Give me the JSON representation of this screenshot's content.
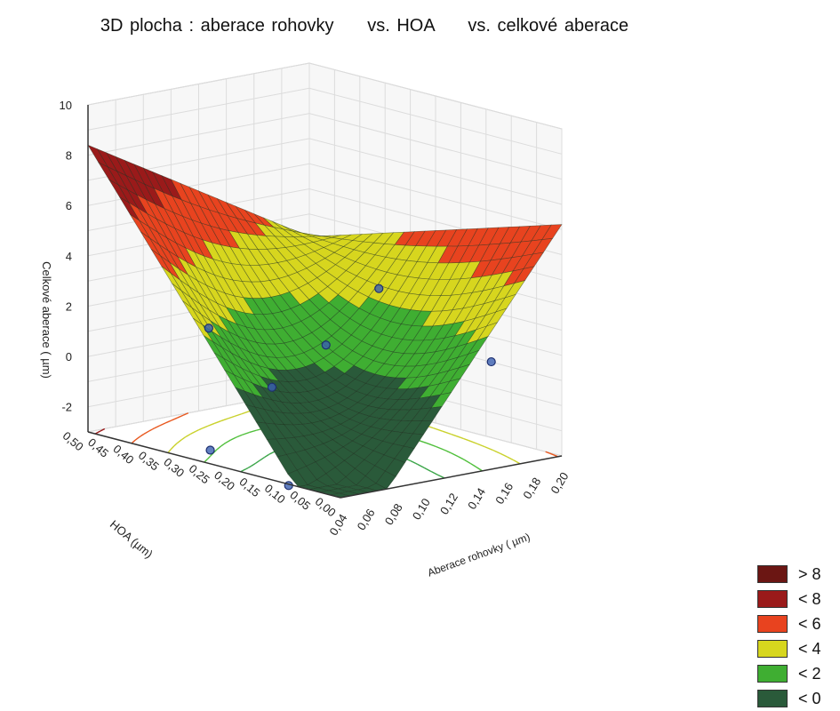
{
  "chart_data": {
    "type": "surface3d",
    "title": "3D plocha : aberace rohovky     vs. HOA     vs. celkové aberace",
    "xlabel": "Aberace rohovky ( µm)",
    "ylabel": "HOA (µm)",
    "zlabel": "Celkové aberace ( µm)",
    "x_ticks": [
      "0,04",
      "0,06",
      "0,08",
      "0,10",
      "0,12",
      "0,14",
      "0,16",
      "0,18",
      "0,20"
    ],
    "y_ticks": [
      "0,00",
      "0,05",
      "0,10",
      "0,15",
      "0,20",
      "0,25",
      "0,30",
      "0,35",
      "0,40",
      "0,45",
      "0,50"
    ],
    "z_ticks": [
      "10",
      "8",
      "6",
      "4",
      "2",
      "0",
      "-2"
    ],
    "xlim": [
      0.04,
      0.2
    ],
    "ylim": [
      0.0,
      0.5
    ],
    "zlim": [
      -3,
      10
    ],
    "surface_corners": [
      {
        "x": 0.04,
        "y": 0.5,
        "z": 8.4
      },
      {
        "x": 0.2,
        "y": 0.5,
        "z": 3.1
      },
      {
        "x": 0.2,
        "y": 0.0,
        "z": 6.2
      },
      {
        "x": 0.04,
        "y": 0.0,
        "z": -5.5
      }
    ],
    "points": [
      {
        "x": 0.12,
        "y": 0.48,
        "z": 0.4
      },
      {
        "x": 0.15,
        "y": 0.33,
        "z": 0.2
      },
      {
        "x": 0.17,
        "y": 0.28,
        "z": 2.5
      },
      {
        "x": 0.07,
        "y": 0.34,
        "z": -3.2
      },
      {
        "x": 0.1,
        "y": 0.3,
        "z": -0.8
      },
      {
        "x": 0.16,
        "y": 0.03,
        "z": 1.0
      },
      {
        "x": 0.05,
        "y": 0.13,
        "z": -3.3
      }
    ],
    "legend": {
      "position": "bottom-right",
      "items": [
        {
          "label": "> 8",
          "color": "#6b1613"
        },
        {
          "label": "< 8",
          "color": "#9a1a1a"
        },
        {
          "label": "< 6",
          "color": "#e8431f"
        },
        {
          "label": "< 4",
          "color": "#d7d61e"
        },
        {
          "label": "< 2",
          "color": "#3fae32"
        },
        {
          "label": "< 0",
          "color": "#2a5a3a"
        }
      ]
    },
    "grid": true
  }
}
